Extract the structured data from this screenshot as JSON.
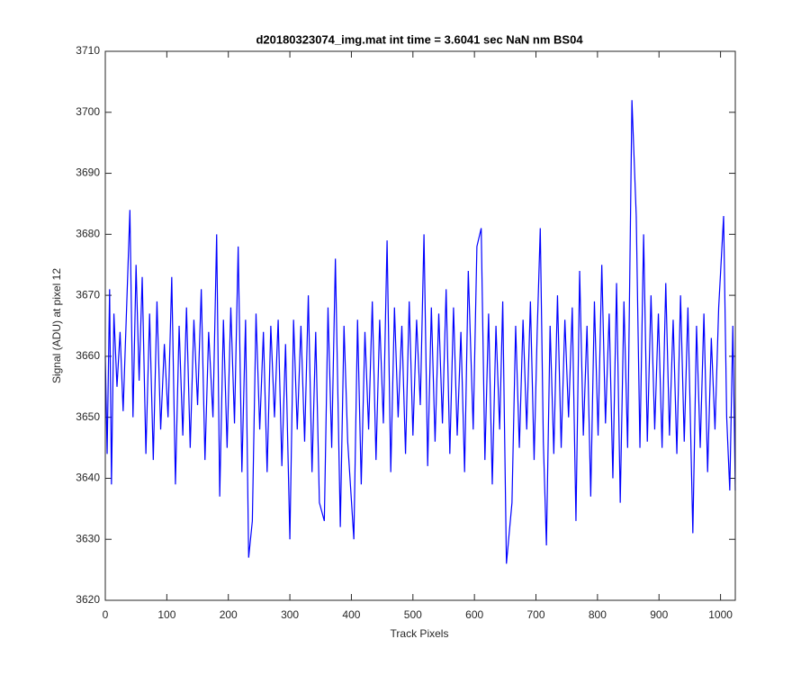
{
  "chart_data": {
    "type": "line",
    "title": "d20180323074_img.mat int time = 3.6041 sec  NaN nm BS04",
    "x_label": "Track Pixels",
    "y_label": "Signal (ADU) at pixel 12",
    "xlim": [
      0,
      1024
    ],
    "ylim": [
      3620,
      3710
    ],
    "xticks": [
      0,
      100,
      200,
      300,
      400,
      500,
      600,
      700,
      800,
      900,
      1000
    ],
    "yticks": [
      3620,
      3630,
      3640,
      3650,
      3660,
      3670,
      3680,
      3690,
      3700,
      3710
    ],
    "grid": false,
    "x": [
      0,
      3,
      7,
      10,
      14,
      19,
      24,
      29,
      34,
      40,
      45,
      50,
      55,
      60,
      66,
      72,
      78,
      84,
      90,
      96,
      102,
      108,
      114,
      120,
      126,
      132,
      138,
      144,
      150,
      156,
      162,
      168,
      175,
      181,
      186,
      192,
      198,
      204,
      210,
      216,
      222,
      228,
      233,
      239,
      245,
      251,
      257,
      263,
      269,
      275,
      281,
      287,
      293,
      300,
      306,
      312,
      318,
      324,
      330,
      336,
      342,
      348,
      356,
      362,
      368,
      374,
      382,
      388,
      394,
      404,
      410,
      416,
      422,
      428,
      434,
      440,
      446,
      452,
      458,
      464,
      470,
      476,
      482,
      488,
      494,
      500,
      506,
      512,
      518,
      524,
      530,
      536,
      542,
      548,
      554,
      560,
      566,
      572,
      578,
      584,
      590,
      598,
      604,
      611,
      617,
      623,
      629,
      635,
      641,
      646,
      652,
      661,
      667,
      673,
      679,
      685,
      691,
      697,
      702,
      707,
      712,
      717,
      723,
      729,
      735,
      741,
      747,
      753,
      759,
      765,
      771,
      777,
      783,
      789,
      795,
      801,
      807,
      813,
      819,
      825,
      831,
      837,
      843,
      849,
      856,
      863,
      869,
      875,
      881,
      887,
      893,
      899,
      905,
      911,
      917,
      923,
      929,
      935,
      941,
      947,
      955,
      961,
      967,
      973,
      979,
      985,
      991,
      997,
      1005,
      1010,
      1015,
      1020,
      1024
    ],
    "series": [
      {
        "color": "#0000ff",
        "values": [
          3660,
          3644,
          3671,
          3639,
          3667,
          3655,
          3664,
          3651,
          3666,
          3684,
          3650,
          3675,
          3656,
          3673,
          3644,
          3667,
          3643,
          3669,
          3648,
          3662,
          3650,
          3673,
          3639,
          3665,
          3647,
          3668,
          3645,
          3666,
          3652,
          3671,
          3643,
          3664,
          3650,
          3680,
          3637,
          3666,
          3645,
          3668,
          3649,
          3678,
          3641,
          3666,
          3627,
          3633,
          3667,
          3648,
          3664,
          3641,
          3665,
          3650,
          3666,
          3642,
          3662,
          3630,
          3666,
          3648,
          3665,
          3646,
          3670,
          3641,
          3664,
          3636,
          3633,
          3668,
          3645,
          3676,
          3632,
          3665,
          3646,
          3630,
          3666,
          3639,
          3664,
          3648,
          3669,
          3643,
          3666,
          3649,
          3679,
          3641,
          3668,
          3650,
          3665,
          3644,
          3669,
          3647,
          3666,
          3652,
          3680,
          3642,
          3668,
          3646,
          3667,
          3649,
          3671,
          3644,
          3668,
          3647,
          3664,
          3641,
          3674,
          3648,
          3678,
          3681,
          3643,
          3667,
          3639,
          3665,
          3648,
          3669,
          3626,
          3636,
          3665,
          3645,
          3666,
          3648,
          3669,
          3643,
          3664,
          3681,
          3646,
          3629,
          3665,
          3644,
          3670,
          3645,
          3666,
          3650,
          3668,
          3633,
          3674,
          3647,
          3665,
          3637,
          3669,
          3647,
          3675,
          3649,
          3667,
          3640,
          3672,
          3636,
          3669,
          3645,
          3702,
          3683,
          3645,
          3680,
          3646,
          3670,
          3648,
          3667,
          3645,
          3672,
          3647,
          3666,
          3644,
          3670,
          3646,
          3668,
          3631,
          3665,
          3645,
          3667,
          3641,
          3663,
          3648,
          3668,
          3683,
          3650,
          3638,
          3665,
          3638
        ]
      }
    ]
  }
}
